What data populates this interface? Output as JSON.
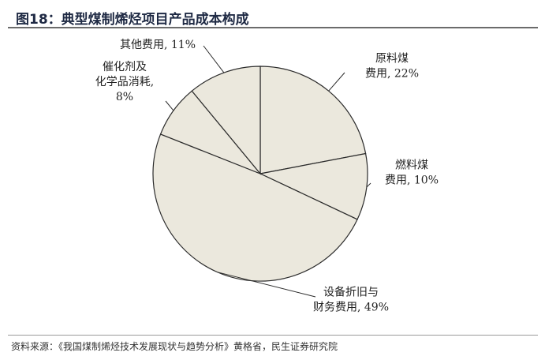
{
  "figure": {
    "title": "图18：典型煤制烯烃项目产品成本构成"
  },
  "chart_data": {
    "type": "pie",
    "slices": [
      {
        "label_lines": [
          "原料煤",
          "费用, 22%"
        ],
        "value": 22
      },
      {
        "label_lines": [
          "燃料煤",
          "费用, 10%"
        ],
        "value": 10
      },
      {
        "label_lines": [
          "设备折旧与",
          "财务费用, 49%"
        ],
        "value": 49
      },
      {
        "label_lines": [
          "催化剂及",
          "化学品消耗,",
          "8%"
        ],
        "value": 8
      },
      {
        "label_lines": [
          "其他费用, 11%"
        ],
        "value": 11
      }
    ],
    "colors": {
      "fill": "#ebe8dd",
      "stroke": "#2b2b2b"
    }
  },
  "source": {
    "text": "资料来源：《我国煤制烯烃技术发展现状与趋势分析》黄格省，民生证券研究院"
  }
}
